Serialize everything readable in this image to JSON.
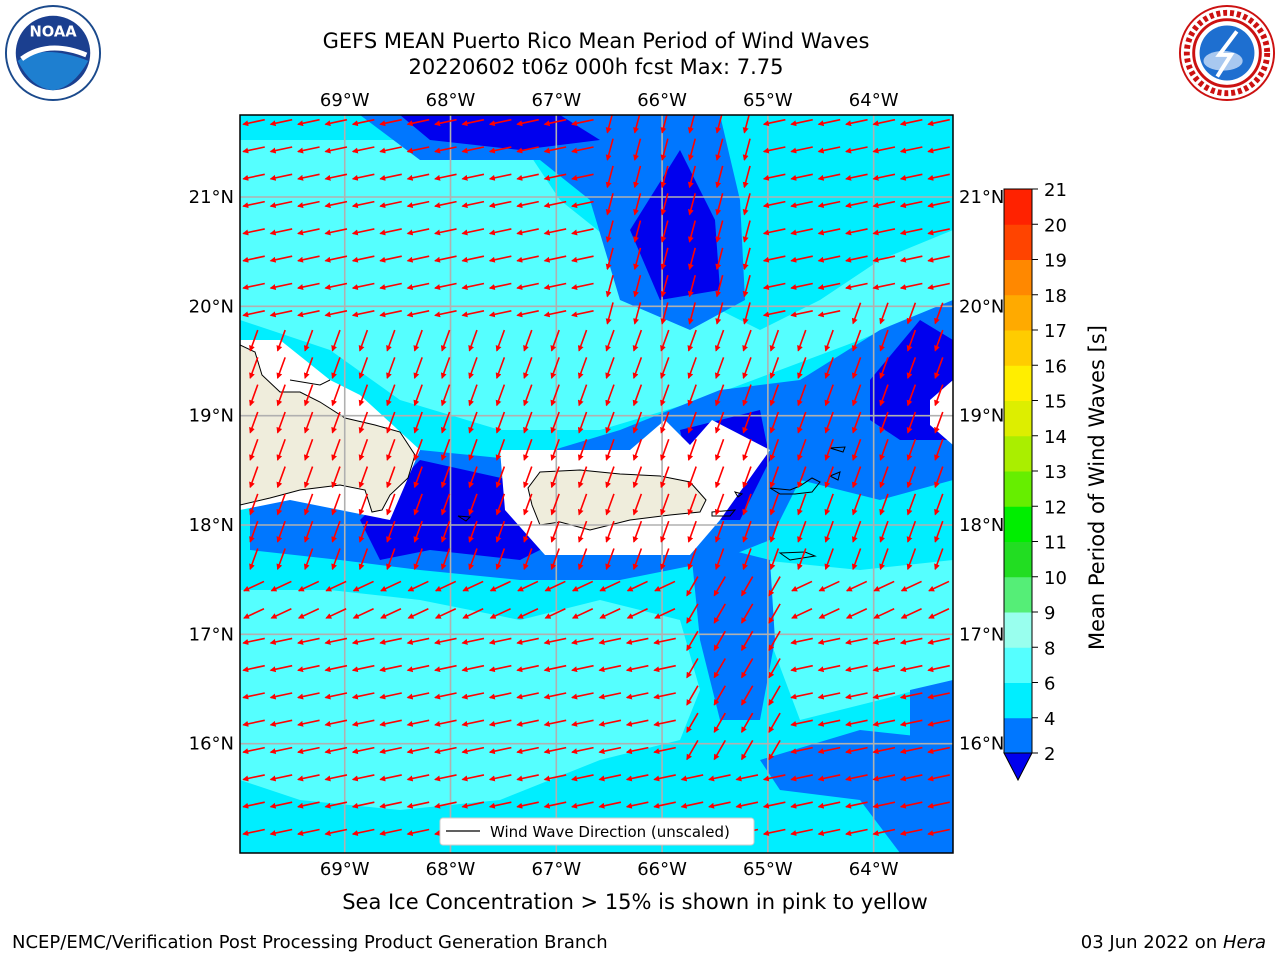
{
  "header": {
    "title_line1": "GEFS MEAN Puerto Rico Mean Period of Wind Waves",
    "title_line2": "20220602 t06z 000h fcst   Max: 7.75"
  },
  "logos": {
    "left": {
      "icon": "noaa-logo-icon",
      "text": "NOAA"
    },
    "right": {
      "icon": "nws-logo-icon"
    }
  },
  "map": {
    "lon_labels": [
      "69°W",
      "68°W",
      "67°W",
      "66°W",
      "65°W",
      "64°W"
    ],
    "lon_values": [
      -69,
      -68,
      -67,
      -66,
      -65,
      -64
    ],
    "lat_labels": [
      "16°N",
      "17°N",
      "18°N",
      "19°N",
      "20°N",
      "21°N"
    ],
    "lat_values": [
      16,
      17,
      18,
      19,
      20,
      21
    ],
    "extent": {
      "lon": [
        -69.99,
        -63.25
      ],
      "lat": [
        15.0,
        21.75
      ]
    },
    "land_color": "#efeddc",
    "legend_label": "Wind Wave Direction (unscaled)",
    "arrow_color": "#ff0000"
  },
  "colorbar": {
    "label": "Mean Period of Wind Waves [s]",
    "ticks": [
      "2",
      "4",
      "6",
      "8",
      "9",
      "10",
      "11",
      "12",
      "13",
      "14",
      "15",
      "16",
      "17",
      "18",
      "19",
      "20",
      "21"
    ],
    "colors": [
      "#0000ee",
      "#0077ff",
      "#00eeff",
      "#55ffff",
      "#99ffee",
      "#55ee77",
      "#22dd22",
      "#00ee00",
      "#66ee00",
      "#aaee00",
      "#ddee00",
      "#ffee00",
      "#ffcc00",
      "#ffaa00",
      "#ff8800",
      "#ff4400",
      "#ff2200",
      "#ff0000"
    ]
  },
  "footer": {
    "note": "Sea Ice Concentration > 15% is shown in pink to yellow",
    "left": "NCEP/EMC/Verification Post Processing Product Generation Branch",
    "right_prefix": "03 Jun 2022 on ",
    "right_host": "Hera"
  }
}
